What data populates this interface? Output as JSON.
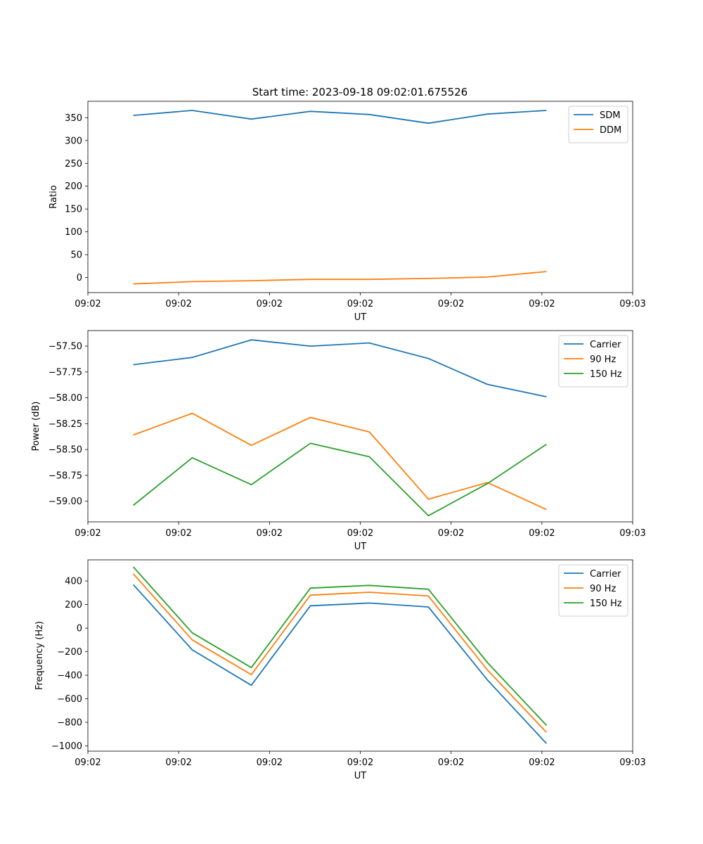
{
  "figure": {
    "title": "Start time: 2023-09-18 09:02:01.675526"
  },
  "colors": {
    "blue": "#1f77b4",
    "orange": "#ff7f0e",
    "green": "#2ca02c"
  },
  "chart_data": [
    {
      "id": "ratio",
      "type": "line",
      "title": "Start time: 2023-09-18 09:02:01.675526",
      "xlabel": "UT",
      "ylabel": "Ratio",
      "x": [
        0.5,
        1.15,
        1.8,
        2.45,
        3.1,
        3.75,
        4.4,
        5.05
      ],
      "xlim": [
        0,
        6
      ],
      "xticks": [
        0,
        1,
        2,
        3,
        4,
        5,
        6
      ],
      "xtick_labels": [
        "09:02",
        "09:02",
        "09:02",
        "09:02",
        "09:02",
        "09:02",
        "09:03"
      ],
      "ylim": [
        -33,
        386
      ],
      "yticks": [
        0,
        50,
        100,
        150,
        200,
        250,
        300,
        350
      ],
      "ytick_labels": [
        "0",
        "50",
        "100",
        "150",
        "200",
        "250",
        "300",
        "350"
      ],
      "legend": "top-right",
      "series": [
        {
          "name": "SDM",
          "color": "#1f77b4",
          "values": [
            355,
            366,
            347,
            364,
            357,
            338,
            358,
            366
          ]
        },
        {
          "name": "DDM",
          "color": "#ff7f0e",
          "values": [
            -14,
            -9,
            -7,
            -4,
            -4,
            -2,
            1,
            13
          ]
        }
      ]
    },
    {
      "id": "power",
      "type": "line",
      "title": "",
      "xlabel": "UT",
      "ylabel": "Power (dB)",
      "x": [
        0.5,
        1.15,
        1.8,
        2.45,
        3.1,
        3.75,
        4.4,
        5.05
      ],
      "xlim": [
        0,
        6
      ],
      "xticks": [
        0,
        1,
        2,
        3,
        4,
        5,
        6
      ],
      "xtick_labels": [
        "09:02",
        "09:02",
        "09:02",
        "09:02",
        "09:02",
        "09:02",
        "09:03"
      ],
      "ylim": [
        -59.2,
        -57.35
      ],
      "yticks": [
        -59.0,
        -58.75,
        -58.5,
        -58.25,
        -58.0,
        -57.75,
        -57.5
      ],
      "ytick_labels": [
        "−59.00",
        "−58.75",
        "−58.50",
        "−58.25",
        "−58.00",
        "−57.75",
        "−57.50"
      ],
      "legend": "top-right",
      "series": [
        {
          "name": "Carrier",
          "color": "#1f77b4",
          "values": [
            -57.68,
            -57.61,
            -57.44,
            -57.5,
            -57.47,
            -57.62,
            -57.87,
            -57.99
          ]
        },
        {
          "name": "90 Hz",
          "color": "#ff7f0e",
          "values": [
            -58.36,
            -58.15,
            -58.46,
            -58.19,
            -58.33,
            -58.98,
            -58.82,
            -59.08
          ]
        },
        {
          "name": "150 Hz",
          "color": "#2ca02c",
          "values": [
            -59.04,
            -58.58,
            -58.84,
            -58.44,
            -58.57,
            -59.14,
            -58.83,
            -58.45
          ]
        }
      ]
    },
    {
      "id": "frequency",
      "type": "line",
      "title": "",
      "xlabel": "UT",
      "ylabel": "Frequency (Hz)",
      "x": [
        0.5,
        1.15,
        1.8,
        2.45,
        3.1,
        3.75,
        4.4,
        5.05
      ],
      "xlim": [
        0,
        6
      ],
      "xticks": [
        0,
        1,
        2,
        3,
        4,
        5,
        6
      ],
      "xtick_labels": [
        "09:02",
        "09:02",
        "09:02",
        "09:02",
        "09:02",
        "09:02",
        "09:03"
      ],
      "ylim": [
        -1045,
        580
      ],
      "yticks": [
        -1000,
        -800,
        -600,
        -400,
        -200,
        0,
        200,
        400
      ],
      "ytick_labels": [
        "−1000",
        "−800",
        "−600",
        "−400",
        "−200",
        "0",
        "200",
        "400"
      ],
      "legend": "top-right",
      "series": [
        {
          "name": "Carrier",
          "color": "#1f77b4",
          "values": [
            370,
            -185,
            -485,
            190,
            213,
            180,
            -440,
            -980
          ]
        },
        {
          "name": "90 Hz",
          "color": "#ff7f0e",
          "values": [
            462,
            -100,
            -395,
            280,
            305,
            273,
            -355,
            -885
          ]
        },
        {
          "name": "150 Hz",
          "color": "#2ca02c",
          "values": [
            520,
            -40,
            -335,
            340,
            363,
            330,
            -292,
            -825
          ]
        }
      ]
    }
  ]
}
